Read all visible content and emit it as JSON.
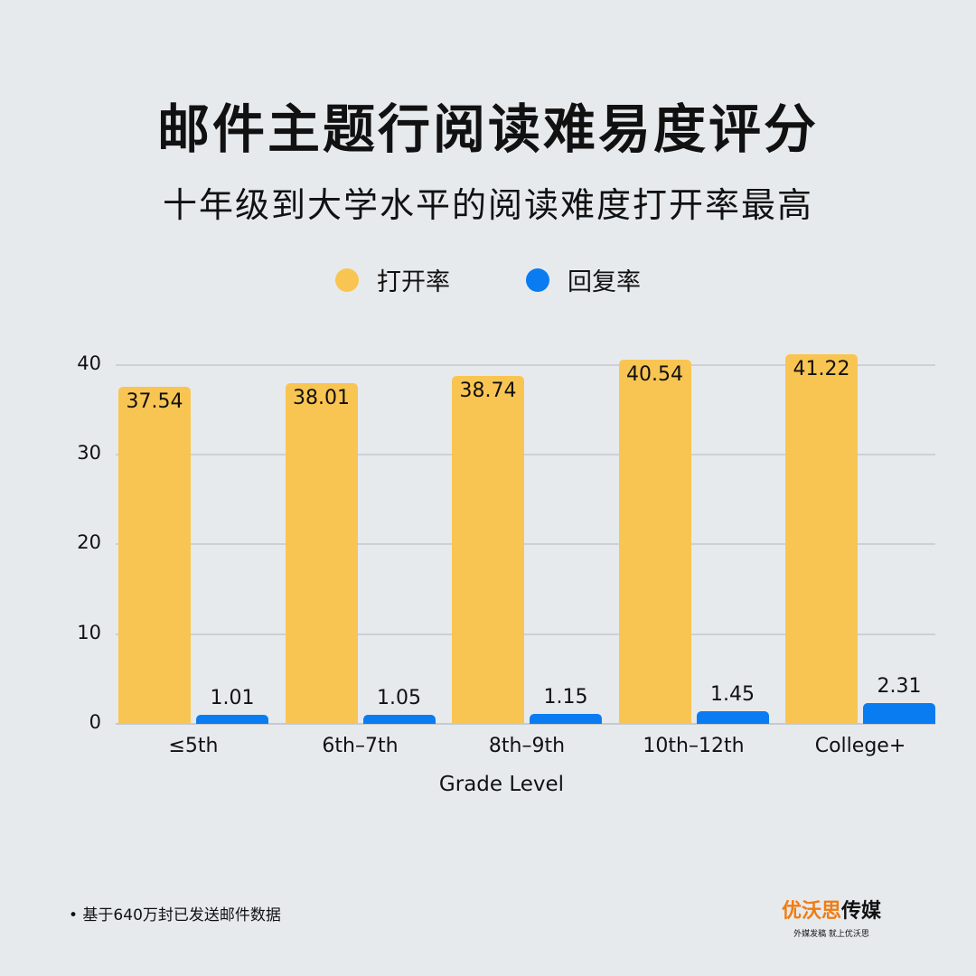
{
  "header": {
    "title": "邮件主题行阅读难易度评分",
    "subtitle": "十年级到大学水平的阅读难度打开率最高"
  },
  "legend": [
    {
      "label": "打开率",
      "color": "#f9c552"
    },
    {
      "label": "回复率",
      "color": "#0a7cf2"
    }
  ],
  "footnote": "• 基于640万封已发送邮件数据",
  "brand": {
    "name_orange": "优沃思",
    "name_black": "传媒",
    "tagline": "外媒发稿 就上优沃思"
  },
  "chart_data": {
    "type": "bar",
    "title": "邮件主题行阅读难易度评分",
    "subtitle": "十年级到大学水平的阅读难度打开率最高",
    "xlabel": "Grade Level",
    "ylabel": "",
    "categories": [
      "≤5th",
      "6th–7th",
      "8th–9th",
      "10th–12th",
      "College+"
    ],
    "series": [
      {
        "name": "打开率",
        "color": "#f9c552",
        "values": [
          37.54,
          38.01,
          38.74,
          40.54,
          41.22
        ]
      },
      {
        "name": "回复率",
        "color": "#0a7cf2",
        "values": [
          1.01,
          1.05,
          1.15,
          1.45,
          2.31
        ]
      }
    ],
    "yticks": [
      0,
      10,
      20,
      30,
      40
    ],
    "ylim": [
      0,
      42
    ],
    "grid": true,
    "legend_position": "top",
    "data_labels": true
  }
}
